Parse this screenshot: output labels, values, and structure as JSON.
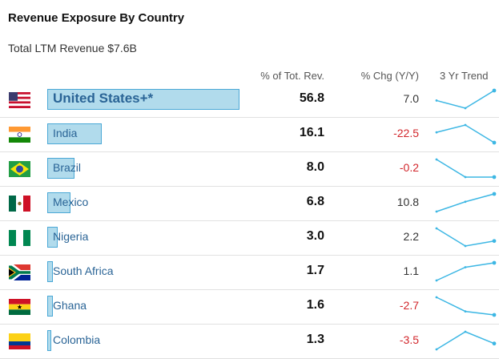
{
  "page": {
    "title": "Revenue Exposure By Country",
    "subtitle": "Total LTM Revenue $7.6B"
  },
  "colors": {
    "bar_fill": "#b1dbec",
    "bar_border": "#4aa8d6",
    "sparkline": "#3db7e4",
    "negative": "#d2262b",
    "country_text": "#2a6496"
  },
  "chart_data": {
    "type": "table",
    "columns": [
      "",
      "% of Tot. Rev.",
      "% Chg (Y/Y)",
      "3 Yr Trend"
    ],
    "rows": [
      {
        "country": "United States+*",
        "flag": "us-flag",
        "pct_rev": "56.8",
        "pct_rev_value": 56.8,
        "chg": "7.0",
        "chg_value": 7.0,
        "trend": [
          55.5,
          54.5,
          56.8
        ]
      },
      {
        "country": "India",
        "flag": "india-flag",
        "pct_rev": "16.1",
        "pct_rev_value": 16.1,
        "chg": "-22.5",
        "chg_value": -22.5,
        "trend": [
          17.8,
          19.0,
          16.1
        ]
      },
      {
        "country": "Brazil",
        "flag": "brazil-flag",
        "pct_rev": "8.0",
        "pct_rev_value": 8.0,
        "chg": "-0.2",
        "chg_value": -0.2,
        "trend": [
          9.2,
          8.0,
          8.0
        ]
      },
      {
        "country": "Mexico",
        "flag": "mexico-flag",
        "pct_rev": "6.8",
        "pct_rev_value": 6.8,
        "chg": "10.8",
        "chg_value": 10.8,
        "trend": [
          5.9,
          6.4,
          6.8
        ]
      },
      {
        "country": "Nigeria",
        "flag": "nigeria-flag",
        "pct_rev": "3.0",
        "pct_rev_value": 3.0,
        "chg": "2.2",
        "chg_value": 2.2,
        "trend": [
          3.5,
          2.8,
          3.0
        ]
      },
      {
        "country": "South Africa",
        "flag": "south-africa-flag",
        "pct_rev": "1.7",
        "pct_rev_value": 1.7,
        "chg": "1.1",
        "chg_value": 1.1,
        "trend": [
          1.3,
          1.6,
          1.7
        ]
      },
      {
        "country": "Ghana",
        "flag": "ghana-flag",
        "pct_rev": "1.6",
        "pct_rev_value": 1.6,
        "chg": "-2.7",
        "chg_value": -2.7,
        "trend": [
          2.1,
          1.7,
          1.6
        ]
      },
      {
        "country": "Colombia",
        "flag": "colombia-flag",
        "pct_rev": "1.3",
        "pct_rev_value": 1.3,
        "chg": "-3.5",
        "chg_value": -3.5,
        "trend": [
          1.2,
          1.5,
          1.3
        ]
      }
    ]
  }
}
